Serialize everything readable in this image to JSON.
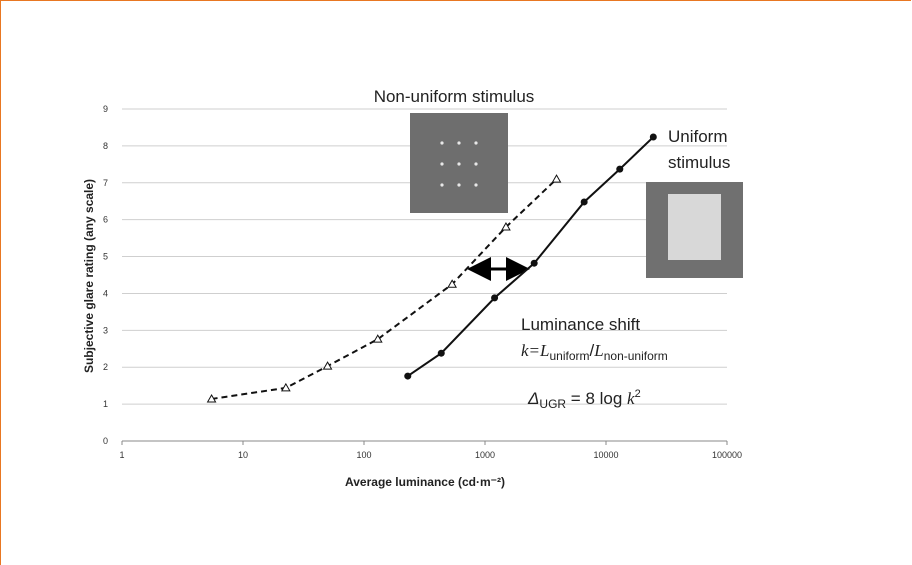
{
  "chart_data": {
    "type": "line",
    "y_label": "Subjective glare rating (any scale)",
    "x_label": "Average luminance (cd·m⁻²)",
    "xlog": true,
    "xlim": [
      1,
      100000
    ],
    "xticks": [
      1,
      10,
      100,
      1000,
      10000,
      100000
    ],
    "ylim": [
      0,
      9
    ],
    "yticks": [
      0,
      1,
      2,
      3,
      4,
      5,
      6,
      7,
      8,
      9
    ],
    "grid": true,
    "series": [
      {
        "color": "#111111",
        "dashed": true,
        "marker": "triangle",
        "x": [
          5.5,
          22.6,
          50,
          130,
          535,
          1490,
          3900
        ],
        "values": [
          1.14,
          1.44,
          2.03,
          2.76,
          4.25,
          5.8,
          7.1
        ]
      },
      {
        "color": "#111111",
        "dashed": false,
        "marker": "circle",
        "x": [
          230,
          435,
          1200,
          2550,
          6600,
          13000,
          24600
        ],
        "values": [
          1.76,
          2.38,
          3.88,
          4.82,
          6.48,
          7.37,
          8.24
        ]
      }
    ],
    "annotations": {
      "non_uniform": "Non-uniform stimulus",
      "uniform": [
        "Uniform",
        "stimulus"
      ],
      "shift": "Luminance shift",
      "shift_formula": [
        "k=",
        "L",
        "uniform",
        "/",
        "L",
        "non-uniform"
      ],
      "ugr_formula": [
        "Δ",
        "UGR",
        " = 8 log ",
        "k",
        "2"
      ]
    }
  }
}
